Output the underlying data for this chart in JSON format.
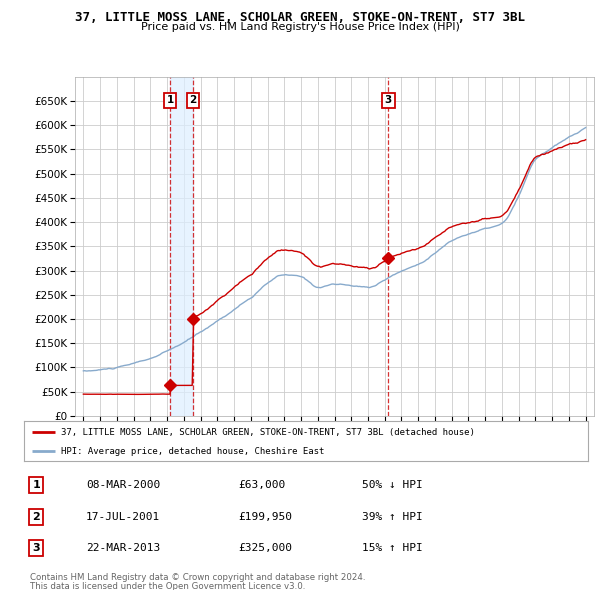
{
  "title": "37, LITTLE MOSS LANE, SCHOLAR GREEN, STOKE-ON-TRENT, ST7 3BL",
  "subtitle": "Price paid vs. HM Land Registry's House Price Index (HPI)",
  "property_label": "37, LITTLE MOSS LANE, SCHOLAR GREEN, STOKE-ON-TRENT, ST7 3BL (detached house)",
  "hpi_label": "HPI: Average price, detached house, Cheshire East",
  "transactions": [
    {
      "num": 1,
      "date": "08-MAR-2000",
      "price": 63000,
      "price_str": "£63,000",
      "pct": "50%",
      "dir": "↓",
      "x": 2000.19
    },
    {
      "num": 2,
      "date": "17-JUL-2001",
      "price": 199950,
      "price_str": "£199,950",
      "pct": "39%",
      "dir": "↑",
      "x": 2001.54
    },
    {
      "num": 3,
      "date": "22-MAR-2013",
      "price": 325000,
      "price_str": "£325,000",
      "pct": "15%",
      "dir": "↑",
      "x": 2013.22
    }
  ],
  "property_color": "#cc0000",
  "hpi_color": "#88aacc",
  "vline_color": "#cc0000",
  "shade_color": "#ddeeff",
  "background_color": "#ffffff",
  "grid_color": "#cccccc",
  "ylim": [
    0,
    700000
  ],
  "xlim": [
    1994.5,
    2025.5
  ],
  "yticks": [
    0,
    50000,
    100000,
    150000,
    200000,
    250000,
    300000,
    350000,
    400000,
    450000,
    500000,
    550000,
    600000,
    650000
  ],
  "xticks": [
    1995,
    1996,
    1997,
    1998,
    1999,
    2000,
    2001,
    2002,
    2003,
    2004,
    2005,
    2006,
    2007,
    2008,
    2009,
    2010,
    2011,
    2012,
    2013,
    2014,
    2015,
    2016,
    2017,
    2018,
    2019,
    2020,
    2021,
    2022,
    2023,
    2024,
    2025
  ],
  "footer_line1": "Contains HM Land Registry data © Crown copyright and database right 2024.",
  "footer_line2": "This data is licensed under the Open Government Licence v3.0."
}
